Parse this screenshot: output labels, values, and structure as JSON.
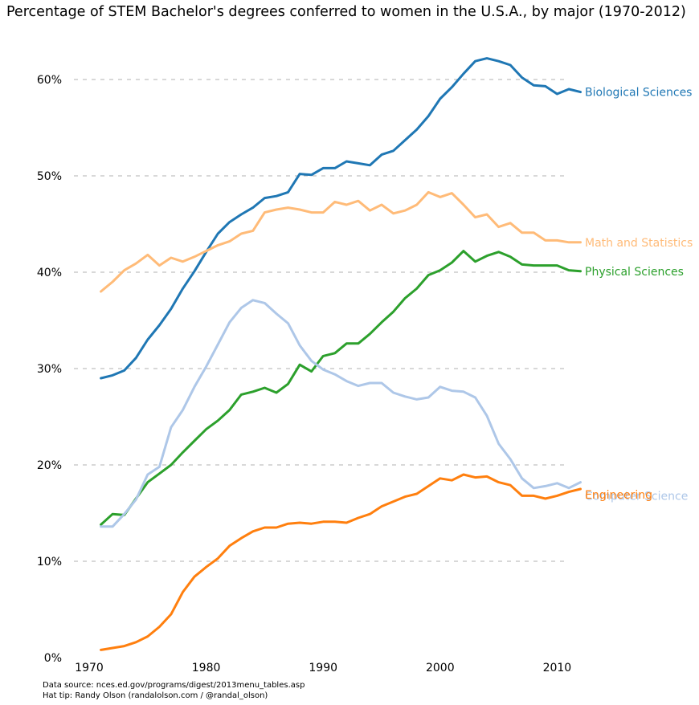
{
  "chart_data": {
    "type": "line",
    "title": "Percentage of STEM Bachelor's degrees conferred to women in the U.S.A., by major (1970-2012)",
    "xlabel": "",
    "ylabel": "",
    "xlim": [
      1970,
      2012
    ],
    "ylim": [
      0,
      60
    ],
    "x_ticks": [
      1970,
      1980,
      1990,
      2000,
      2010
    ],
    "y_ticks": [
      0,
      10,
      20,
      30,
      40,
      50,
      60
    ],
    "y_tick_labels": [
      "0%",
      "10%",
      "20%",
      "30%",
      "40%",
      "50%",
      "60%"
    ],
    "grid": "horizontal dashed",
    "legend": "labels at line ends",
    "x": [
      1971,
      1972,
      1973,
      1974,
      1975,
      1976,
      1977,
      1978,
      1979,
      1980,
      1981,
      1982,
      1983,
      1984,
      1985,
      1986,
      1987,
      1988,
      1989,
      1990,
      1991,
      1992,
      1993,
      1994,
      1995,
      1996,
      1997,
      1998,
      1999,
      2000,
      2001,
      2002,
      2003,
      2004,
      2005,
      2006,
      2007,
      2008,
      2009,
      2010,
      2011,
      2012
    ],
    "series": [
      {
        "name": "Biological Sciences",
        "color": "#1f77b4",
        "values": [
          29.0,
          29.3,
          29.8,
          31.1,
          33.0,
          34.5,
          36.2,
          38.3,
          40.1,
          42.1,
          44.0,
          45.2,
          46.0,
          46.7,
          47.7,
          47.9,
          48.3,
          50.2,
          50.1,
          50.8,
          50.8,
          51.5,
          51.3,
          51.1,
          52.2,
          52.6,
          53.7,
          54.8,
          56.2,
          58.0,
          59.2,
          60.6,
          61.9,
          62.2,
          61.9,
          61.5,
          60.2,
          59.4,
          59.3,
          58.5,
          59.0,
          58.7
        ]
      },
      {
        "name": "Math and Statistics",
        "color": "#ffbb78",
        "values": [
          38.0,
          39.0,
          40.2,
          40.9,
          41.8,
          40.7,
          41.5,
          41.1,
          41.6,
          42.2,
          42.8,
          43.2,
          44.0,
          44.3,
          46.2,
          46.5,
          46.7,
          46.5,
          46.2,
          46.2,
          47.3,
          47.0,
          47.4,
          46.4,
          47.0,
          46.1,
          46.4,
          47.0,
          48.3,
          47.8,
          48.2,
          47.0,
          45.7,
          46.0,
          44.7,
          45.1,
          44.1,
          44.1,
          43.3,
          43.3,
          43.1,
          43.1
        ]
      },
      {
        "name": "Physical Sciences",
        "color": "#2ca02c",
        "values": [
          13.8,
          14.9,
          14.8,
          16.5,
          18.2,
          19.1,
          20.0,
          21.3,
          22.5,
          23.7,
          24.6,
          25.7,
          27.3,
          27.6,
          28.0,
          27.5,
          28.4,
          30.4,
          29.7,
          31.3,
          31.6,
          32.6,
          32.6,
          33.6,
          34.8,
          35.9,
          37.3,
          38.3,
          39.7,
          40.2,
          41.0,
          42.2,
          41.1,
          41.7,
          42.1,
          41.6,
          40.8,
          40.7,
          40.7,
          40.7,
          40.2,
          40.1
        ]
      },
      {
        "name": "Computer Science",
        "color": "#aec7e8",
        "values": [
          13.6,
          13.6,
          14.9,
          16.4,
          19.0,
          19.8,
          23.9,
          25.7,
          28.1,
          30.2,
          32.5,
          34.8,
          36.3,
          37.1,
          36.8,
          35.7,
          34.7,
          32.4,
          30.8,
          29.9,
          29.4,
          28.7,
          28.2,
          28.5,
          28.5,
          27.5,
          27.1,
          26.8,
          27.0,
          28.1,
          27.7,
          27.6,
          27.0,
          25.1,
          22.2,
          20.6,
          18.6,
          17.6,
          17.8,
          18.1,
          17.6,
          18.2
        ]
      },
      {
        "name": "Engineering",
        "color": "#ff7f0e",
        "values": [
          0.8,
          1.0,
          1.2,
          1.6,
          2.2,
          3.2,
          4.5,
          6.8,
          8.4,
          9.4,
          10.3,
          11.6,
          12.4,
          13.1,
          13.5,
          13.5,
          13.9,
          14.0,
          13.9,
          14.1,
          14.1,
          14.0,
          14.5,
          14.9,
          15.7,
          16.2,
          16.7,
          17.0,
          17.8,
          18.6,
          18.4,
          19.0,
          18.7,
          18.8,
          18.2,
          17.9,
          16.8,
          16.8,
          16.5,
          16.8,
          17.2,
          17.5
        ]
      }
    ]
  },
  "footer": {
    "source": "Data source: nces.ed.gov/programs/digest/2013menu_tables.asp",
    "hat_tip": "Hat tip: Randy Olson (randalolson.com / @randal_olson)"
  }
}
